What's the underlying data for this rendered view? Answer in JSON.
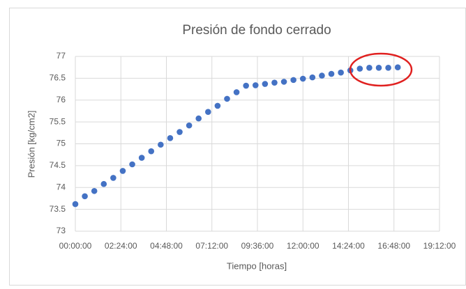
{
  "chart_data": {
    "type": "scatter",
    "title": "Presión de fondo cerrado",
    "x_label": "Tiempo [horas]",
    "y_label": "Presión [kg/cm2]",
    "color": "#4472c4",
    "grid": true,
    "x": [
      0,
      0.5,
      1,
      1.5,
      2,
      2.5,
      3,
      3.5,
      4,
      4.5,
      5,
      5.5,
      6,
      6.5,
      7,
      7.5,
      8,
      8.5,
      9,
      9.5,
      10,
      10.5,
      11,
      11.5,
      12,
      12.5,
      13,
      13.5,
      14,
      14.5,
      15,
      15.5,
      16,
      16.5,
      17
    ],
    "values": [
      73.62,
      73.8,
      73.92,
      74.08,
      74.22,
      74.38,
      74.53,
      74.68,
      74.83,
      74.98,
      75.13,
      75.27,
      75.42,
      75.58,
      75.73,
      75.87,
      76.03,
      76.18,
      76.33,
      76.34,
      76.37,
      76.4,
      76.42,
      76.46,
      76.49,
      76.52,
      76.56,
      76.6,
      76.63,
      76.68,
      76.72,
      76.74,
      76.74,
      76.74,
      76.75
    ],
    "xlim": [
      0,
      19.2
    ],
    "xticks": [
      {
        "value": 0,
        "label": "00:00:00"
      },
      {
        "value": 2.4,
        "label": "02:24:00"
      },
      {
        "value": 4.8,
        "label": "04:48:00"
      },
      {
        "value": 7.2,
        "label": "07:12:00"
      },
      {
        "value": 9.6,
        "label": "09:36:00"
      },
      {
        "value": 12,
        "label": "12:00:00"
      },
      {
        "value": 14.4,
        "label": "14:24:00"
      },
      {
        "value": 16.8,
        "label": "16:48:00"
      },
      {
        "value": 19.2,
        "label": "19:12:00"
      }
    ],
    "ylim": [
      73,
      77
    ],
    "yticks": [
      73,
      73.5,
      74,
      74.5,
      75,
      75.5,
      76,
      76.5,
      77
    ]
  }
}
